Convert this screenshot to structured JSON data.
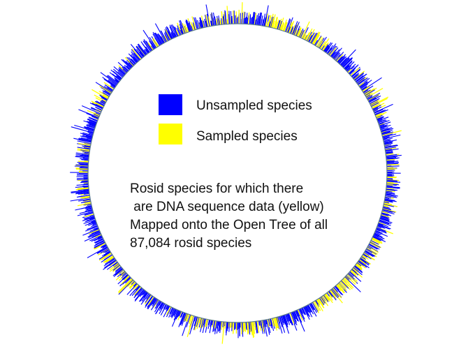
{
  "legend": {
    "items": [
      {
        "label": "Unsampled species",
        "color": "#0000ff"
      },
      {
        "label": "Sampled species",
        "color": "#ffff00"
      }
    ]
  },
  "caption": {
    "lines": [
      "Rosid species for which there",
      " are DNA sequence data (yellow)",
      "Mapped onto the Open Tree of all",
      "87,084 rosid species"
    ]
  },
  "colors": {
    "unsampled": "#0000ff",
    "sampled": "#ffff00",
    "inner_ring": "#5a7a8a"
  }
}
